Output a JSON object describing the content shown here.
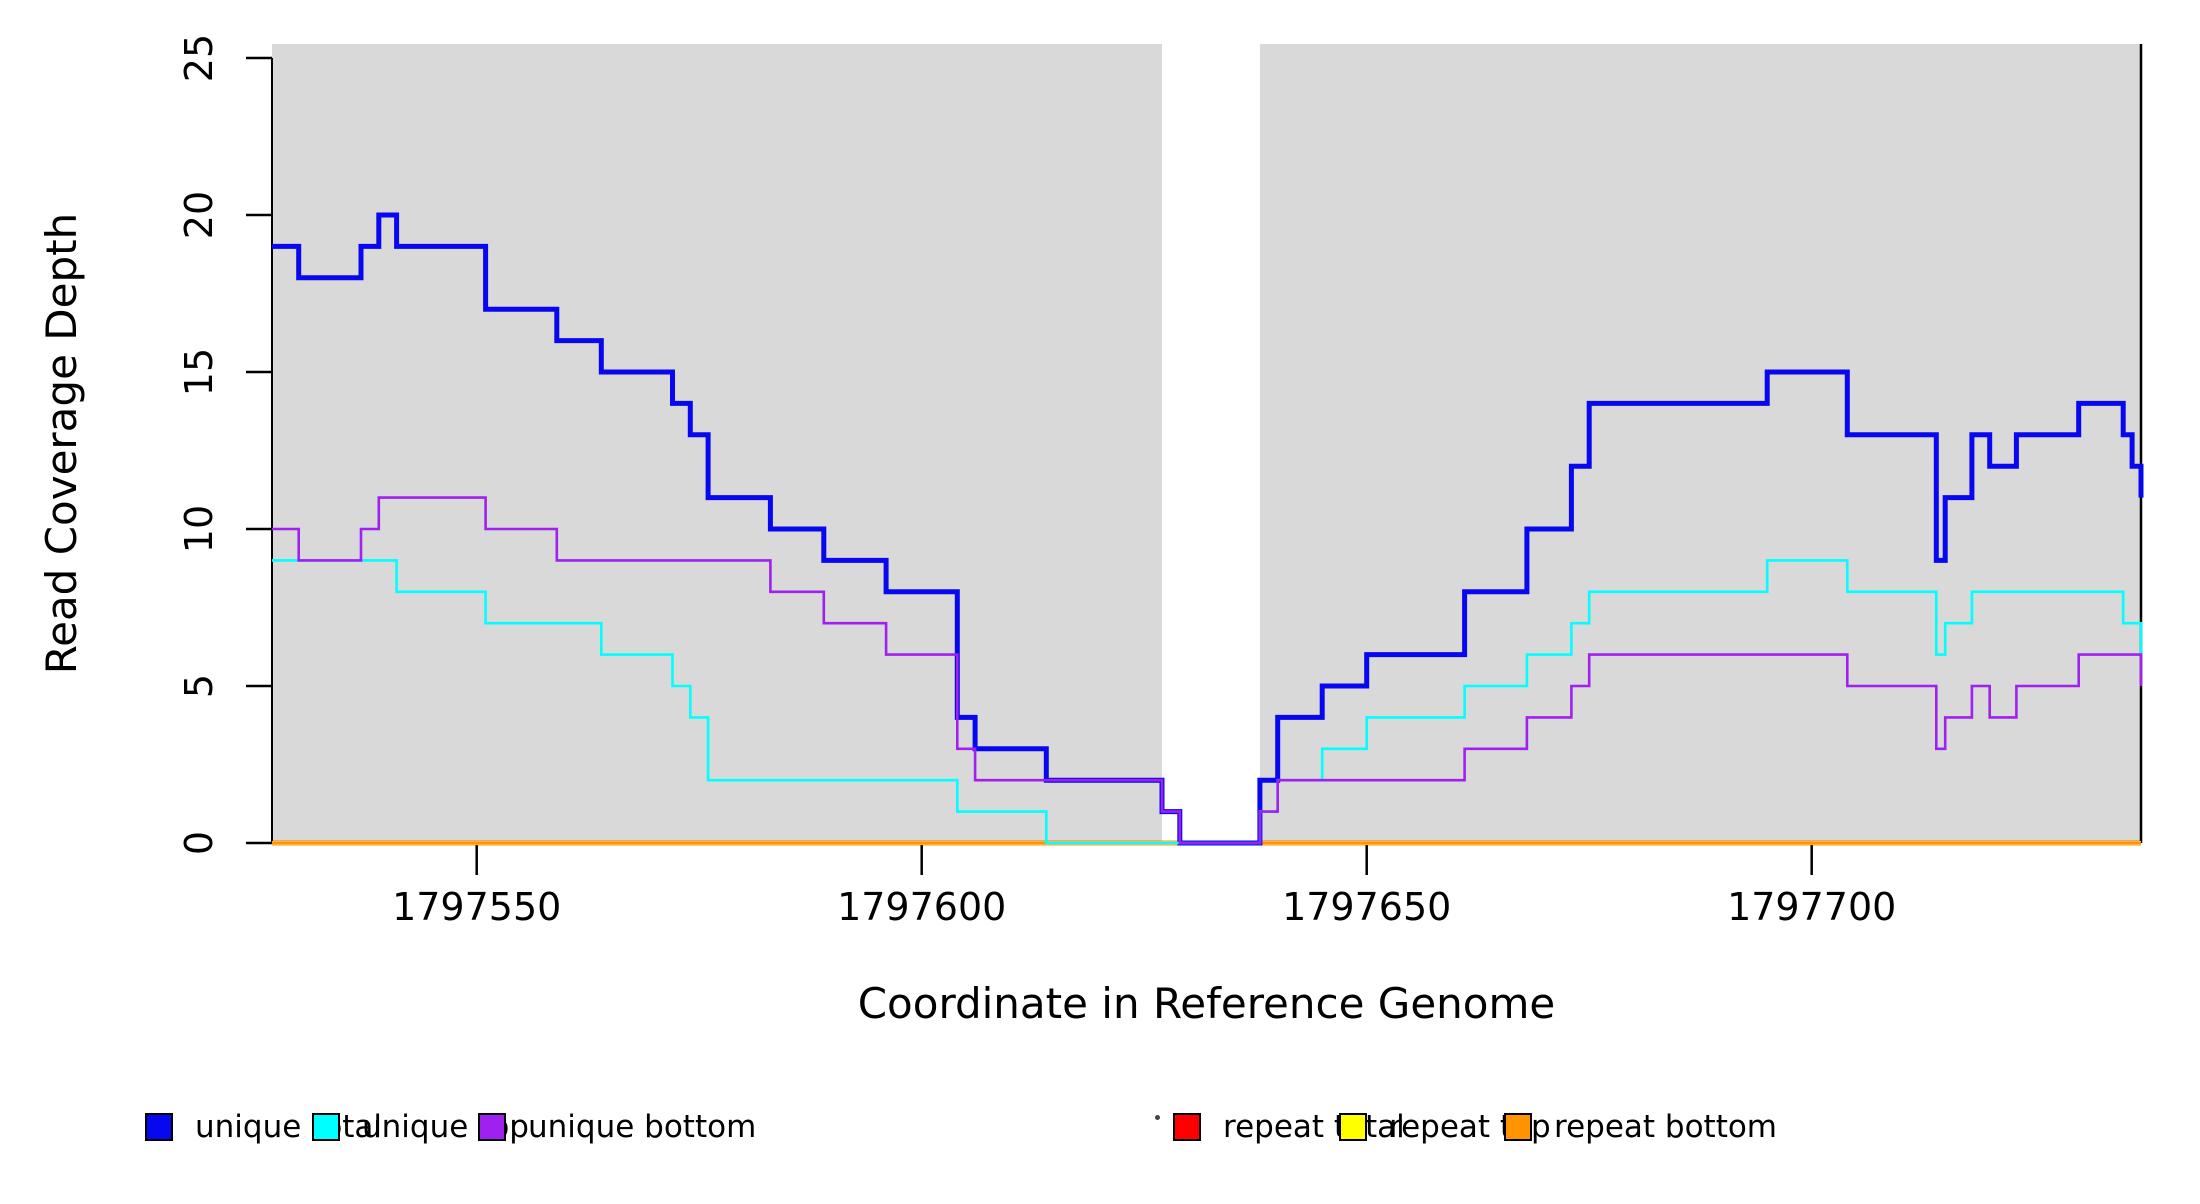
{
  "figure": {
    "xlabel": "Coordinate in Reference Genome",
    "ylabel": "Read Coverage Depth"
  },
  "legend": {
    "items": [
      {
        "label": "unique total",
        "color": "#0808F0"
      },
      {
        "label": "unique top",
        "color": "#00FFFF"
      },
      {
        "label": "unique bottom",
        "color": "#A020F0"
      },
      {
        "label": "repeat total",
        "color": "#FF0000"
      },
      {
        "label": "repeat top",
        "color": "#FFFF00"
      },
      {
        "label": "repeat bottom",
        "color": "#FF9300"
      }
    ]
  },
  "chart_data": {
    "type": "line",
    "step": true,
    "title": "",
    "xlabel": "Coordinate in Reference Genome",
    "ylabel": "Read Coverage Depth",
    "xlim": [
      1797527,
      1797737
    ],
    "ylim": [
      0,
      25
    ],
    "xticks": [
      1797550,
      1797600,
      1797650,
      1797700
    ],
    "yticks": [
      0,
      5,
      10,
      15,
      20,
      25
    ],
    "grid": false,
    "legend_position": "bottom",
    "background_color": "#FFFFFF",
    "highlight_regions": [
      {
        "x0": 1797527,
        "x1": 1797627,
        "color": "#D9D9D9"
      },
      {
        "x0": 1797638,
        "x1": 1797737,
        "color": "#D9D9D9"
      }
    ],
    "draw_order": [
      "repeat total",
      "repeat top",
      "repeat bottom",
      "unique total",
      "unique top",
      "unique bottom"
    ],
    "series": [
      {
        "name": "unique total",
        "color": "#0808F0",
        "width": 5,
        "points": [
          [
            1797527,
            19
          ],
          [
            1797530,
            18
          ],
          [
            1797537,
            19
          ],
          [
            1797539,
            20
          ],
          [
            1797541,
            19
          ],
          [
            1797551,
            17
          ],
          [
            1797559,
            16
          ],
          [
            1797564,
            15
          ],
          [
            1797572,
            14
          ],
          [
            1797574,
            13
          ],
          [
            1797576,
            11
          ],
          [
            1797583,
            10
          ],
          [
            1797589,
            9
          ],
          [
            1797596,
            8
          ],
          [
            1797604,
            4
          ],
          [
            1797606,
            3
          ],
          [
            1797614,
            2
          ],
          [
            1797627,
            1
          ],
          [
            1797629,
            0
          ],
          [
            1797638,
            2
          ],
          [
            1797640,
            4
          ],
          [
            1797645,
            5
          ],
          [
            1797650,
            6
          ],
          [
            1797661,
            8
          ],
          [
            1797668,
            10
          ],
          [
            1797673,
            12
          ],
          [
            1797675,
            14
          ],
          [
            1797695,
            15
          ],
          [
            1797704,
            13
          ],
          [
            1797714,
            9
          ],
          [
            1797715,
            11
          ],
          [
            1797718,
            13
          ],
          [
            1797720,
            12
          ],
          [
            1797723,
            13
          ],
          [
            1797730,
            14
          ],
          [
            1797735,
            13
          ],
          [
            1797736,
            12
          ],
          [
            1797737,
            11
          ]
        ]
      },
      {
        "name": "unique top",
        "color": "#00FFFF",
        "width": 2.6,
        "points": [
          [
            1797527,
            9
          ],
          [
            1797541,
            8
          ],
          [
            1797551,
            7
          ],
          [
            1797564,
            6
          ],
          [
            1797572,
            5
          ],
          [
            1797574,
            4
          ],
          [
            1797576,
            2
          ],
          [
            1797604,
            1
          ],
          [
            1797614,
            0
          ],
          [
            1797638,
            1
          ],
          [
            1797640,
            2
          ],
          [
            1797645,
            3
          ],
          [
            1797650,
            4
          ],
          [
            1797661,
            5
          ],
          [
            1797668,
            6
          ],
          [
            1797673,
            7
          ],
          [
            1797675,
            8
          ],
          [
            1797695,
            9
          ],
          [
            1797704,
            8
          ],
          [
            1797714,
            6
          ],
          [
            1797715,
            7
          ],
          [
            1797718,
            8
          ],
          [
            1797735,
            7
          ],
          [
            1797737,
            6
          ]
        ]
      },
      {
        "name": "unique bottom",
        "color": "#A020F0",
        "width": 2.6,
        "points": [
          [
            1797527,
            10
          ],
          [
            1797530,
            9
          ],
          [
            1797537,
            10
          ],
          [
            1797539,
            11
          ],
          [
            1797551,
            10
          ],
          [
            1797559,
            9
          ],
          [
            1797583,
            8
          ],
          [
            1797589,
            7
          ],
          [
            1797596,
            6
          ],
          [
            1797604,
            3
          ],
          [
            1797606,
            2
          ],
          [
            1797627,
            1
          ],
          [
            1797629,
            0
          ],
          [
            1797638,
            1
          ],
          [
            1797640,
            2
          ],
          [
            1797661,
            3
          ],
          [
            1797668,
            4
          ],
          [
            1797673,
            5
          ],
          [
            1797675,
            6
          ],
          [
            1797704,
            5
          ],
          [
            1797714,
            3
          ],
          [
            1797715,
            4
          ],
          [
            1797718,
            5
          ],
          [
            1797720,
            4
          ],
          [
            1797723,
            5
          ],
          [
            1797730,
            6
          ],
          [
            1797737,
            5
          ]
        ]
      },
      {
        "name": "repeat total",
        "color": "#FF0000",
        "width": 4.5,
        "points": [
          [
            1797527,
            0
          ]
        ]
      },
      {
        "name": "repeat top",
        "color": "#FFFF00",
        "width": 4,
        "points": [
          [
            1797527,
            0
          ]
        ]
      },
      {
        "name": "repeat bottom",
        "color": "#FF9300",
        "width": 3.2,
        "points": [
          [
            1797527,
            0
          ]
        ]
      }
    ]
  }
}
